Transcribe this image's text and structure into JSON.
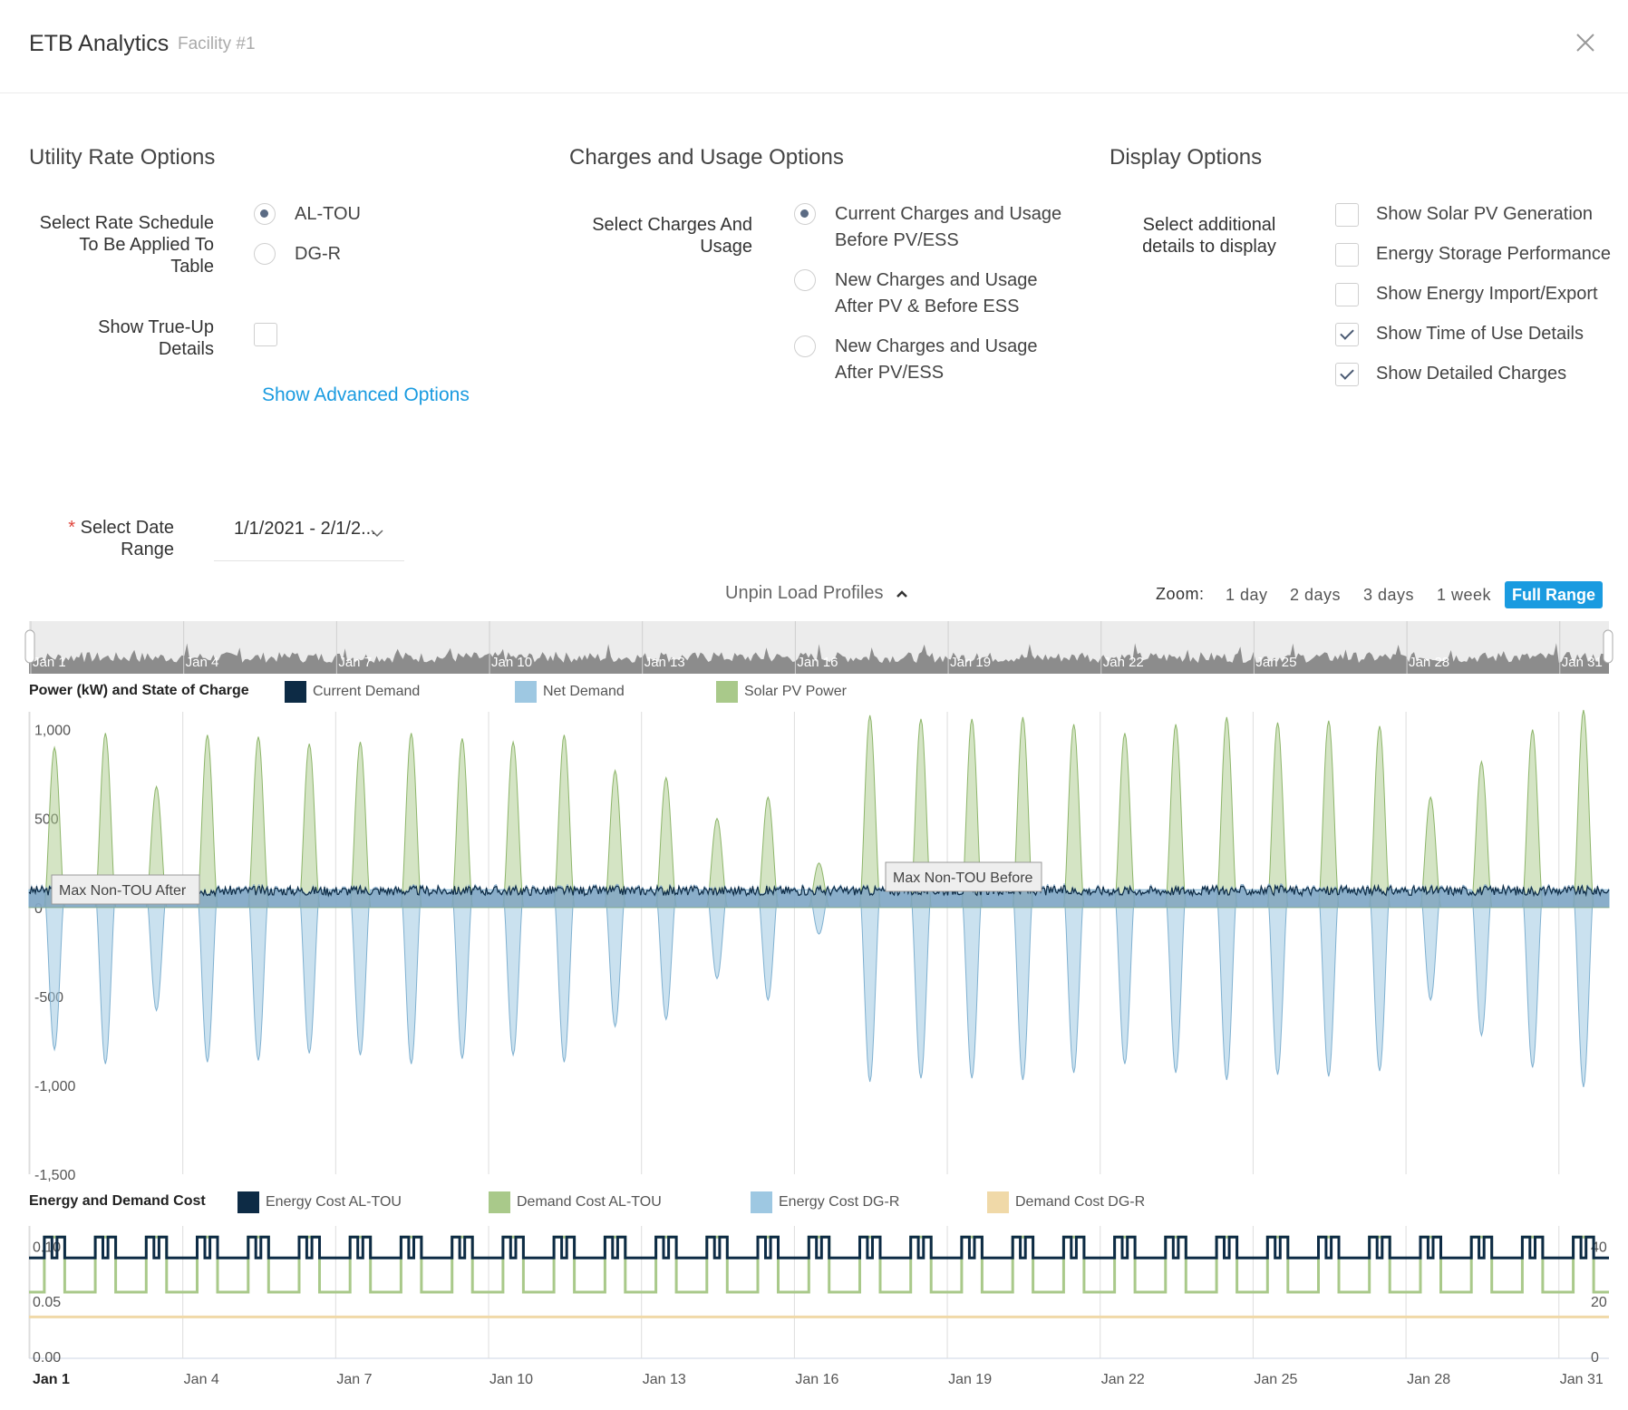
{
  "header": {
    "title": "ETB Analytics",
    "subtitle": "Facility #1"
  },
  "utility": {
    "title": "Utility Rate Options",
    "rate_label": "Select Rate Schedule To Be Applied To Table",
    "rates": [
      {
        "label": "AL-TOU",
        "selected": true
      },
      {
        "label": "DG-R",
        "selected": false
      }
    ],
    "trueup_label": "Show True-Up Details",
    "trueup_checked": false,
    "advanced_link": "Show Advanced Options"
  },
  "charges": {
    "title": "Charges and Usage Options",
    "select_label": "Select Charges And Usage",
    "options": [
      {
        "line1": "Current Charges and Usage",
        "line2": "Before PV/ESS",
        "selected": true
      },
      {
        "line1": "New Charges and Usage",
        "line2": "After PV & Before ESS",
        "selected": false
      },
      {
        "line1": "New Charges and Usage",
        "line2": "After PV/ESS",
        "selected": false
      }
    ]
  },
  "display": {
    "title": "Display Options",
    "select_label": "Select additional details to display",
    "options": [
      {
        "label": "Show Solar PV Generation",
        "checked": false
      },
      {
        "label": "Energy Storage Performance",
        "checked": false
      },
      {
        "label": "Show Energy Import/Export",
        "checked": false
      },
      {
        "label": "Show Time of Use Details",
        "checked": true
      },
      {
        "label": "Show Detailed Charges",
        "checked": true
      }
    ]
  },
  "date": {
    "required_mark": "*",
    "label": "Select Date Range",
    "value": "1/1/2021 - 2/1/2..."
  },
  "profiles": {
    "unpin_label": "Unpin Load Profiles"
  },
  "zoom": {
    "label": "Zoom:",
    "options": [
      "1 day",
      "2 days",
      "3 days",
      "1 week",
      "Full Range"
    ],
    "active": "Full Range"
  },
  "colors": {
    "current_demand": "#0d2b45",
    "net_demand": "#9ec8e2",
    "solar": "#a9c98a",
    "demand_dgr": "#f0d9a8",
    "accent": "#1a9be0"
  },
  "chart_data": [
    {
      "type": "area",
      "title": "Power (kW) and State of Charge",
      "series": [
        {
          "name": "Current Demand"
        },
        {
          "name": "Net Demand"
        },
        {
          "name": "Solar PV Power"
        }
      ],
      "x_ticks": [
        "Jan 1",
        "Jan 4",
        "Jan 7",
        "Jan 10",
        "Jan 13",
        "Jan 16",
        "Jan 19",
        "Jan 22",
        "Jan 25",
        "Jan 28",
        "Jan 31"
      ],
      "y_ticks": [
        "1,000",
        "500",
        "0",
        "-500",
        "-1,000",
        "-1,500"
      ],
      "ylim": [
        -1500,
        1100
      ],
      "baseline_demand": 100,
      "daily_solar_peak_kw": [
        900,
        980,
        680,
        970,
        960,
        920,
        930,
        980,
        950,
        930,
        970,
        770,
        730,
        500,
        620,
        250,
        1080,
        1060,
        1060,
        1070,
        1030,
        980,
        1030,
        1070,
        1040,
        1050,
        1020,
        620,
        820,
        1000,
        1110
      ],
      "annotations": [
        {
          "label": "Max Non-TOU After",
          "date": "Jan 3"
        },
        {
          "label": "Max Non-TOU Before",
          "date": "Jan 19"
        }
      ]
    },
    {
      "type": "line",
      "title": "Energy and Demand Cost",
      "series": [
        {
          "name": "Energy Cost AL-TOU"
        },
        {
          "name": "Demand Cost AL-TOU"
        },
        {
          "name": "Energy Cost DG-R"
        },
        {
          "name": "Demand Cost DG-R"
        }
      ],
      "y_ticks_left": [
        "0.10",
        "0.05",
        "0.00"
      ],
      "y_ticks_right": [
        "40",
        "20",
        "0"
      ],
      "x_ticks": [
        "Jan 1",
        "Jan 4",
        "Jan 7",
        "Jan 10",
        "Jan 13",
        "Jan 16",
        "Jan 19",
        "Jan 22",
        "Jan 25",
        "Jan 28",
        "Jan 31"
      ],
      "energy_al_tou_range": [
        0.091,
        0.11
      ],
      "demand_al_tou_range": [
        24,
        44
      ],
      "demand_dgr_level": 15
    }
  ],
  "navigator": {
    "ticks": [
      "Jan 1",
      "Jan 4",
      "Jan 7",
      "Jan 10",
      "Jan 13",
      "Jan 16",
      "Jan 19",
      "Jan 22",
      "Jan 25",
      "Jan 28",
      "Jan 31"
    ]
  }
}
